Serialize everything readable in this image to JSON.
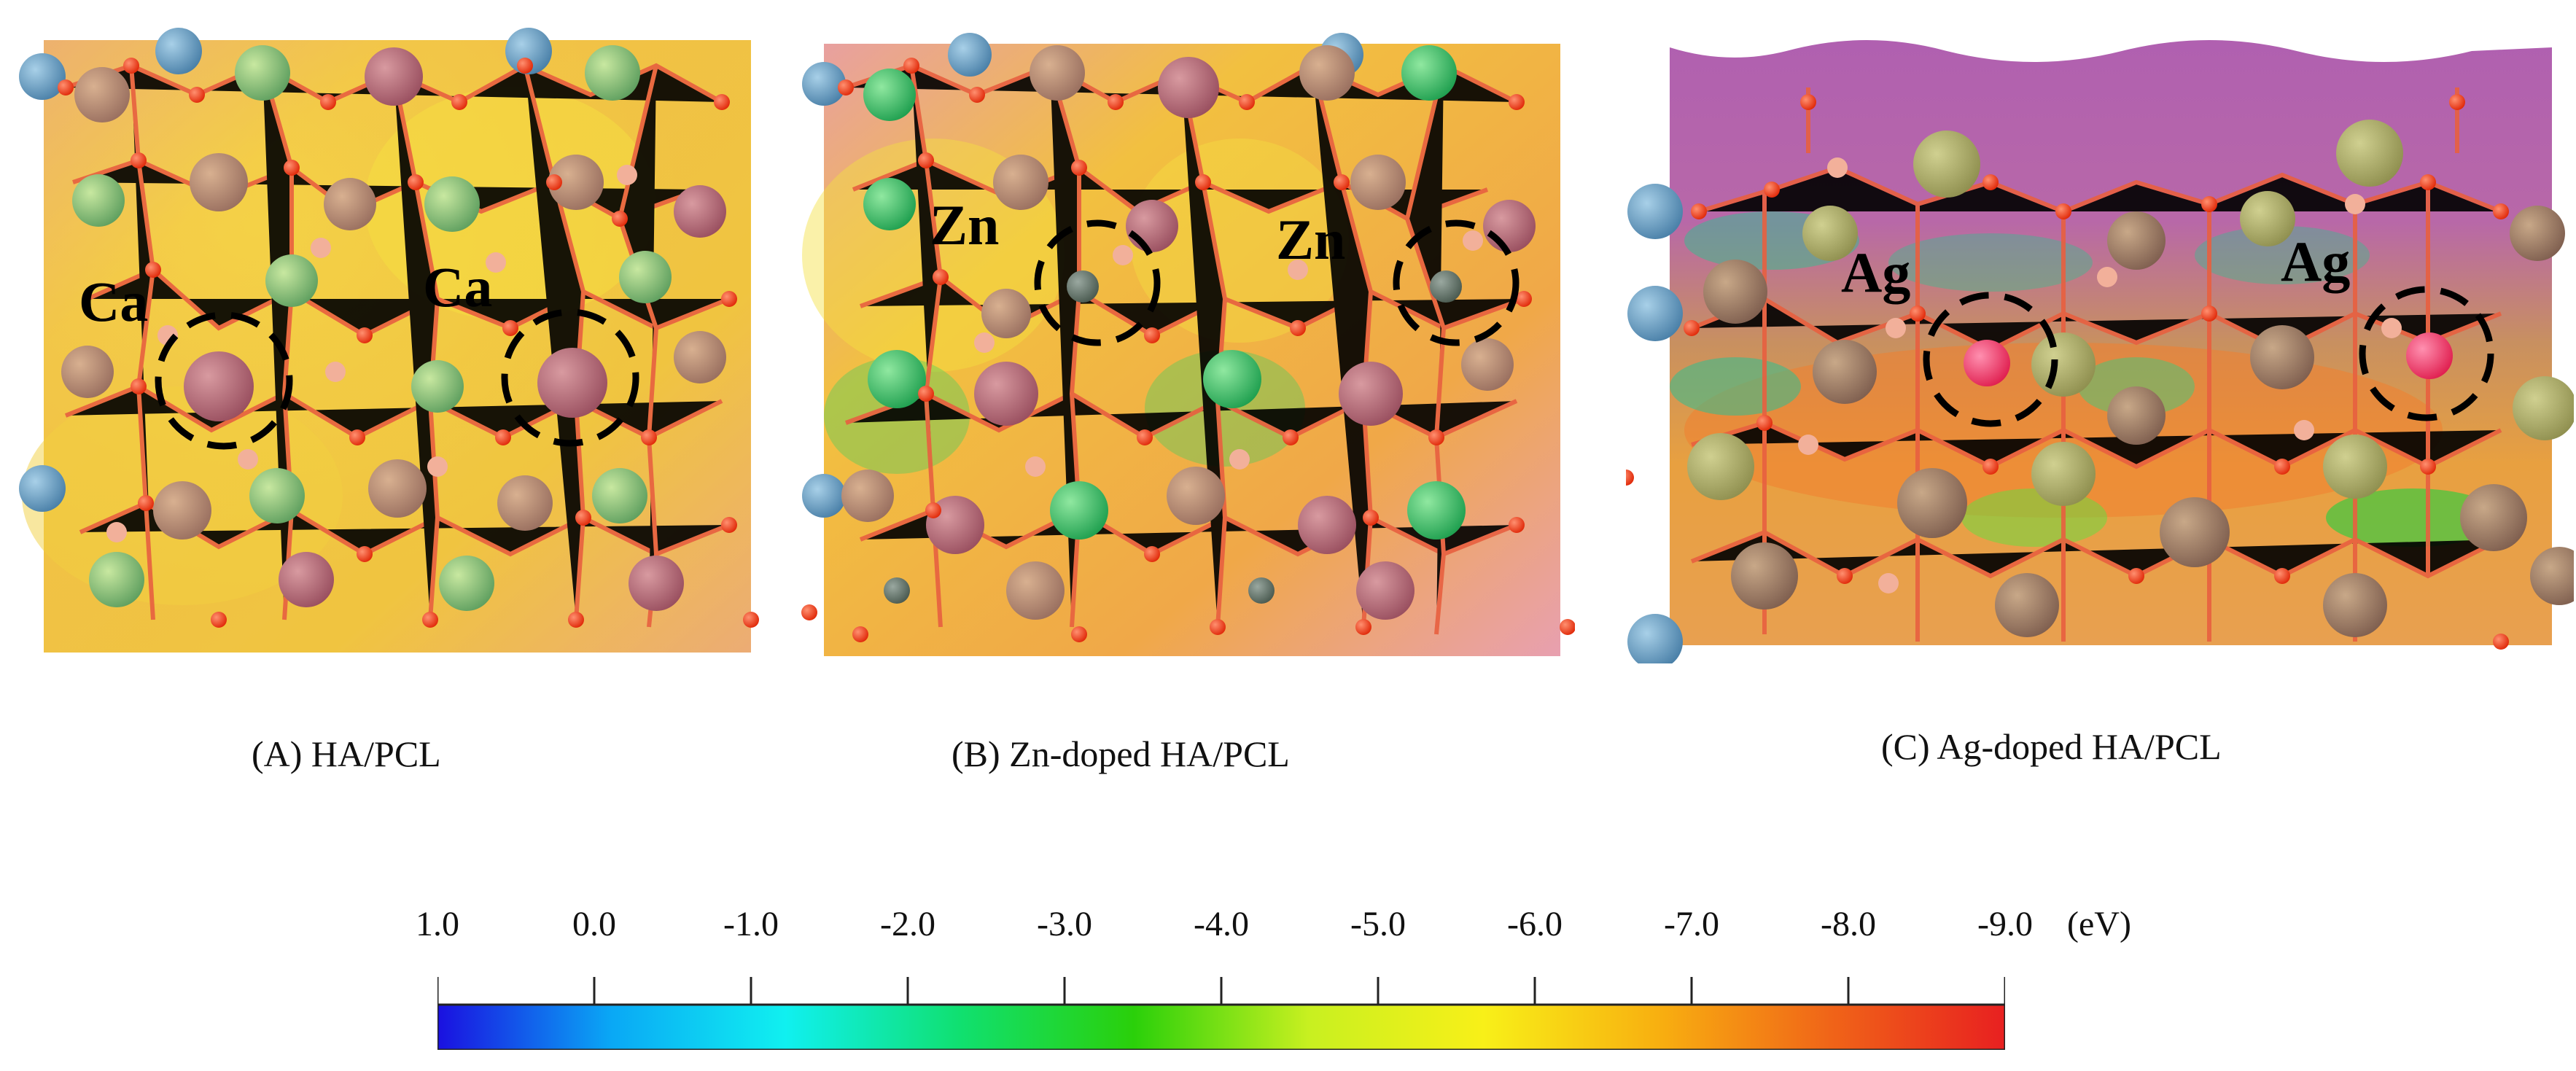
{
  "panels": [
    {
      "id": "A",
      "caption": "(A) HA/PCL",
      "dopant_label": "Ca"
    },
    {
      "id": "B",
      "caption": "(B) Zn-doped HA/PCL",
      "dopant_label": "Zn"
    },
    {
      "id": "C",
      "caption": "(C) Ag-doped HA/PCL",
      "dopant_label": "Ag"
    }
  ],
  "colorbar": {
    "ticks": [
      "1.0",
      "0.0",
      "-1.0",
      "-2.0",
      "-3.0",
      "-4.0",
      "-5.0",
      "-6.0",
      "-7.0",
      "-8.0",
      "-9.0"
    ],
    "unit": "(eV)",
    "min": 1.0,
    "max": -9.0,
    "stops": [
      "#1a10e0",
      "#0aa8f5",
      "#10f0f0",
      "#10e070",
      "#2ad00a",
      "#c8f020",
      "#f8f018",
      "#f8b010",
      "#f06418",
      "#e82020"
    ]
  },
  "colors": {
    "oxygen": "#f23a10",
    "phosphorus": "#f2a88c",
    "calcium": "#b06070",
    "green_atom": "#8ad070",
    "highlight_ring": "#000000"
  }
}
